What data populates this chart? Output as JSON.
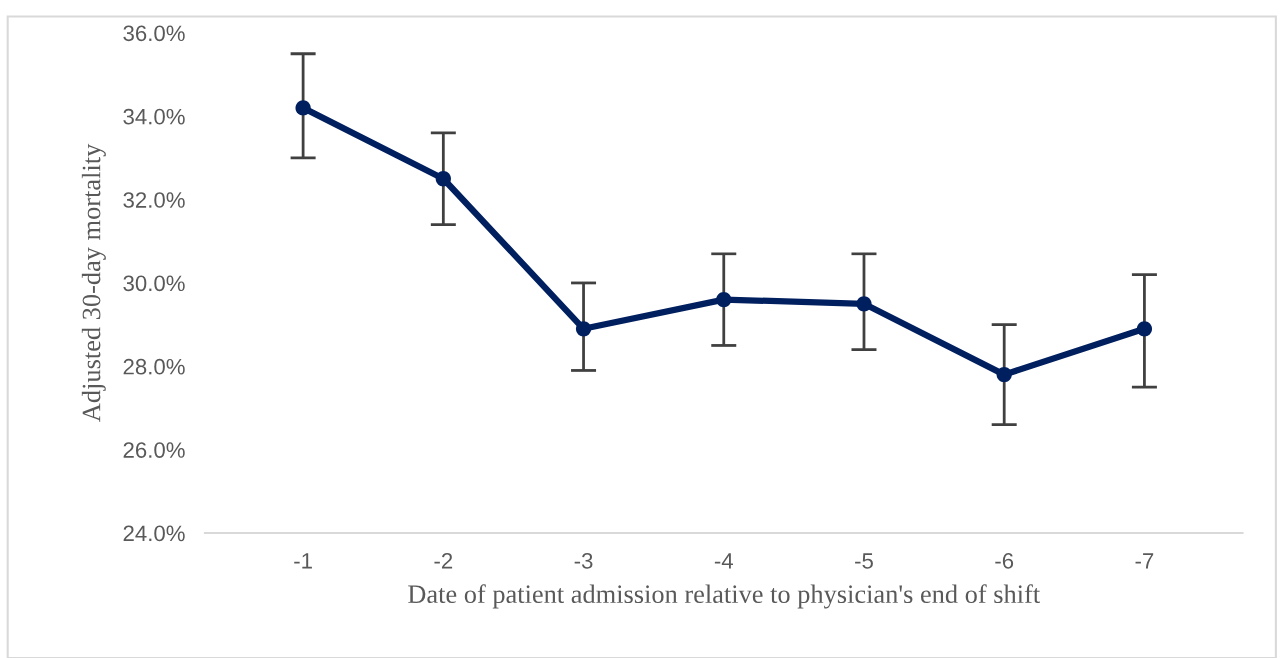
{
  "chart_data": {
    "type": "line",
    "xlabel": "Date of patient admission relative to physician's end of shift",
    "ylabel": "Adjusted 30-day mortality",
    "categories": [
      "-1",
      "-2",
      "-3",
      "-4",
      "-5",
      "-6",
      "-7"
    ],
    "series": [
      {
        "color": "#001f5f",
        "values": [
          34.2,
          32.5,
          28.9,
          29.6,
          29.5,
          27.8,
          28.9
        ],
        "errors": [
          [
            33.0,
            35.5
          ],
          [
            31.4,
            33.6
          ],
          [
            27.9,
            30.0
          ],
          [
            28.5,
            30.7
          ],
          [
            28.4,
            30.7
          ],
          [
            26.6,
            29.0
          ],
          [
            27.5,
            30.2
          ]
        ]
      }
    ],
    "ylim": [
      24,
      36
    ],
    "yticks": [
      {
        "value": 24,
        "label": "24.0%"
      },
      {
        "value": 26,
        "label": "26.0%"
      },
      {
        "value": 28,
        "label": "28.0%"
      },
      {
        "value": 30,
        "label": "30.0%"
      },
      {
        "value": 32,
        "label": "32.0%"
      },
      {
        "value": 34,
        "label": "34.0%"
      },
      {
        "value": 36,
        "label": "36.0%"
      }
    ],
    "grid": false,
    "legend": false,
    "marker": "circle",
    "line_style": "solid"
  }
}
